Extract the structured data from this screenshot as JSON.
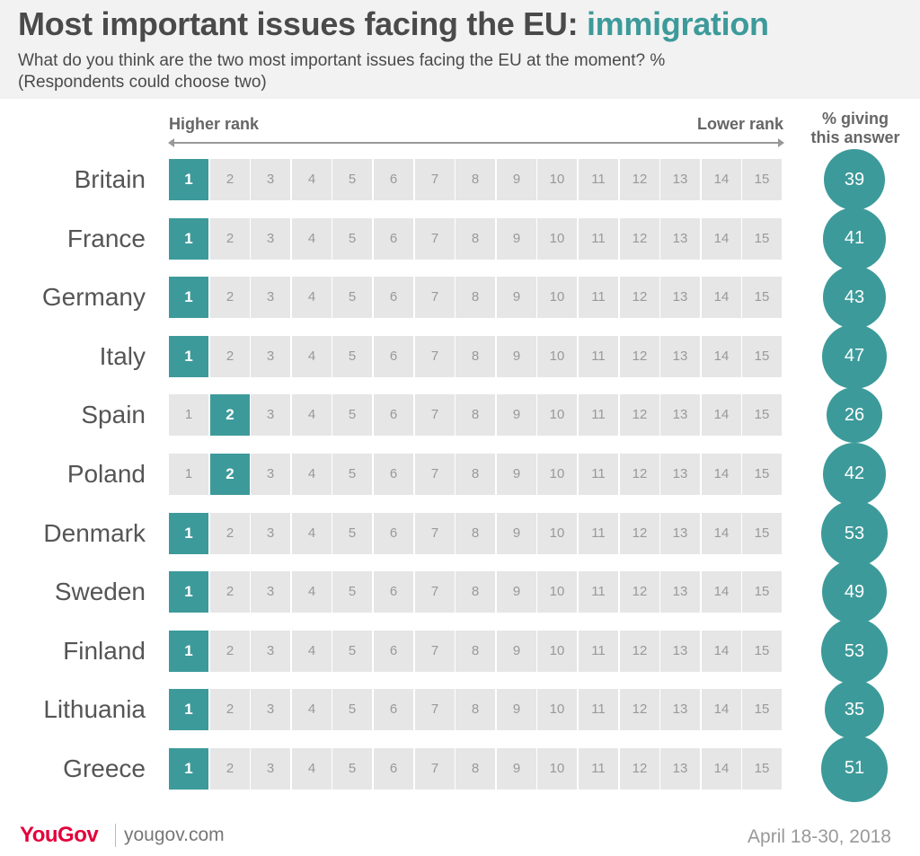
{
  "title": {
    "main": "Most important issues facing the EU: ",
    "highlight": "immigration"
  },
  "subtitle_line1": "What do you think are the two most important issues facing the EU at the moment? %",
  "subtitle_line2": "(Respondents could choose two)",
  "axis": {
    "left_label": "Higher rank",
    "right_label": "Lower rank"
  },
  "pct_header_line1": "% giving",
  "pct_header_line2": "this answer",
  "colors": {
    "accent": "#3d9a9a",
    "cell": "#e6e6e6",
    "brand": "#e4003b"
  },
  "chart_data": {
    "type": "table",
    "title": "Most important issues facing the EU: immigration",
    "ranks": [
      "1",
      "2",
      "3",
      "4",
      "5",
      "6",
      "7",
      "8",
      "9",
      "10",
      "11",
      "12",
      "13",
      "14",
      "15"
    ],
    "rows": [
      {
        "country": "Britain",
        "rank": 1,
        "percent": 39
      },
      {
        "country": "France",
        "rank": 1,
        "percent": 41
      },
      {
        "country": "Germany",
        "rank": 1,
        "percent": 43
      },
      {
        "country": "Italy",
        "rank": 1,
        "percent": 47
      },
      {
        "country": "Spain",
        "rank": 2,
        "percent": 26
      },
      {
        "country": "Poland",
        "rank": 2,
        "percent": 42
      },
      {
        "country": "Denmark",
        "rank": 1,
        "percent": 53
      },
      {
        "country": "Sweden",
        "rank": 1,
        "percent": 49
      },
      {
        "country": "Finland",
        "rank": 1,
        "percent": 53
      },
      {
        "country": "Lithuania",
        "rank": 1,
        "percent": 35
      },
      {
        "country": "Greece",
        "rank": 1,
        "percent": 51
      }
    ]
  },
  "footer": {
    "logo": "YouGov",
    "site": "yougov.com",
    "date": "April 18-30, 2018"
  }
}
